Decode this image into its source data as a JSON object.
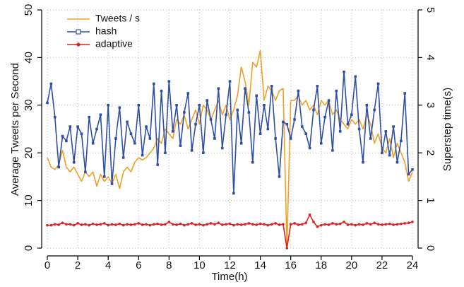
{
  "chart_data": {
    "type": "line",
    "xlabel": "Time(h)",
    "ylabel": "Average Tweets per Second",
    "y2label": "Superstep time(s)",
    "x": [
      0,
      0.25,
      0.5,
      0.75,
      1,
      1.25,
      1.5,
      1.75,
      2,
      2.25,
      2.5,
      2.75,
      3,
      3.25,
      3.5,
      3.75,
      4,
      4.25,
      4.5,
      4.75,
      5,
      5.25,
      5.5,
      5.75,
      6,
      6.25,
      6.5,
      6.75,
      7,
      7.25,
      7.5,
      7.75,
      8,
      8.25,
      8.5,
      8.75,
      9,
      9.25,
      9.5,
      9.75,
      10,
      10.25,
      10.5,
      10.75,
      11,
      11.25,
      11.5,
      11.75,
      12,
      12.25,
      12.5,
      12.75,
      13,
      13.25,
      13.5,
      13.75,
      14,
      14.25,
      14.5,
      14.75,
      15,
      15.25,
      15.5,
      15.75,
      16,
      16.25,
      16.5,
      16.75,
      17,
      17.25,
      17.5,
      17.75,
      18,
      18.25,
      18.5,
      18.75,
      19,
      19.25,
      19.5,
      19.75,
      20,
      20.25,
      20.5,
      20.75,
      21,
      21.25,
      21.5,
      21.75,
      22,
      22.25,
      22.5,
      22.75,
      23,
      23.25,
      23.5,
      23.75,
      24
    ],
    "series": [
      {
        "name": "Tweets / s",
        "color": "#f0a028",
        "marker": "none",
        "values": [
          19,
          17,
          16.5,
          17.5,
          20.5,
          17,
          16,
          17,
          15.5,
          14,
          16,
          15,
          16,
          13,
          15.5,
          14,
          15,
          13.5,
          15.5,
          12.5,
          16,
          17,
          16,
          18,
          19,
          18.5,
          19,
          20,
          21,
          23,
          22,
          25,
          24,
          23,
          27,
          26,
          28,
          25,
          27,
          29,
          26,
          30,
          29,
          27,
          29,
          31,
          28,
          30,
          27,
          29,
          32,
          38,
          35,
          30,
          39,
          38,
          41.5,
          31,
          34,
          33,
          31,
          33,
          33.5,
          0,
          31,
          31,
          32,
          30,
          31,
          29,
          30,
          28,
          31,
          30,
          31,
          28,
          29,
          27,
          26,
          25,
          27,
          26,
          27,
          25,
          28,
          26,
          22,
          24,
          21,
          20,
          23,
          19,
          22,
          20,
          18,
          14,
          16
        ]
      },
      {
        "name": "hash",
        "color": "#2e4fa3",
        "marker": "square",
        "axis": "y2",
        "values": [
          3.05,
          3.45,
          2.75,
          1.7,
          2.35,
          2.25,
          2.55,
          1.8,
          2.55,
          2.4,
          1.6,
          2.75,
          2.2,
          2.5,
          2.8,
          1.5,
          3.0,
          1.35,
          2.3,
          2.95,
          1.9,
          2.65,
          2.4,
          2.2,
          3.0,
          1.95,
          2.55,
          2.3,
          3.45,
          1.75,
          3.3,
          2.0,
          3.5,
          2.45,
          3.0,
          2.15,
          2.85,
          3.25,
          2.05,
          2.6,
          3.0,
          2.0,
          3.1,
          2.7,
          2.3,
          3.35,
          2.1,
          2.8,
          3.5,
          1.15,
          2.9,
          2.2,
          3.35,
          2.85,
          1.8,
          3.2,
          2.4,
          3.0,
          2.5,
          3.4,
          2.3,
          1.5,
          2.65,
          2.6,
          2.3,
          2.7,
          3.3,
          2.55,
          2.4,
          2.1,
          2.9,
          3.4,
          2.2,
          2.75,
          3.1,
          2.05,
          3.3,
          2.45,
          3.7,
          2.6,
          2.8,
          3.6,
          2.5,
          1.8,
          3.0,
          2.3,
          2.9,
          3.45,
          2.0,
          2.45,
          1.95,
          2.55,
          1.8,
          2.25,
          3.25,
          1.55,
          1.65
        ]
      },
      {
        "name": "adaptive",
        "color": "#e0201c",
        "marker": "circle",
        "axis": "y2",
        "values": [
          0.48,
          0.48,
          0.5,
          0.49,
          0.53,
          0.5,
          0.5,
          0.48,
          0.52,
          0.49,
          0.5,
          0.48,
          0.51,
          0.49,
          0.5,
          0.52,
          0.48,
          0.5,
          0.49,
          0.51,
          0.48,
          0.5,
          0.49,
          0.5,
          0.52,
          0.49,
          0.5,
          0.48,
          0.5,
          0.51,
          0.49,
          0.5,
          0.55,
          0.5,
          0.49,
          0.51,
          0.48,
          0.5,
          0.52,
          0.49,
          0.5,
          0.48,
          0.5,
          0.52,
          0.5,
          0.53,
          0.49,
          0.5,
          0.51,
          0.48,
          0.5,
          0.49,
          0.5,
          0.52,
          0.5,
          0.49,
          0.51,
          0.5,
          0.48,
          0.5,
          0.52,
          0.49,
          0.5,
          0,
          0.5,
          0.52,
          0.49,
          0.5,
          0.53,
          0.7,
          0.55,
          0.45,
          0.48,
          0.5,
          0.49,
          0.52,
          0.5,
          0.51,
          0.55,
          0.49,
          0.5,
          0.48,
          0.5,
          0.49,
          0.52,
          0.5,
          0.53,
          0.5,
          0.49,
          0.5,
          0.51,
          0.49,
          0.5,
          0.51,
          0.52,
          0.53,
          0.55
        ]
      }
    ],
    "xlim": [
      0,
      24
    ],
    "xticks": [
      0,
      2,
      4,
      6,
      8,
      10,
      12,
      14,
      16,
      18,
      20,
      22,
      24
    ],
    "ylim": [
      0,
      50
    ],
    "yticks": [
      0,
      10,
      20,
      30,
      40,
      50
    ],
    "y2lim": [
      0,
      5
    ],
    "y2ticks": [
      0,
      1,
      2,
      3,
      4,
      5
    ],
    "grid": true,
    "legend": "upper left"
  }
}
